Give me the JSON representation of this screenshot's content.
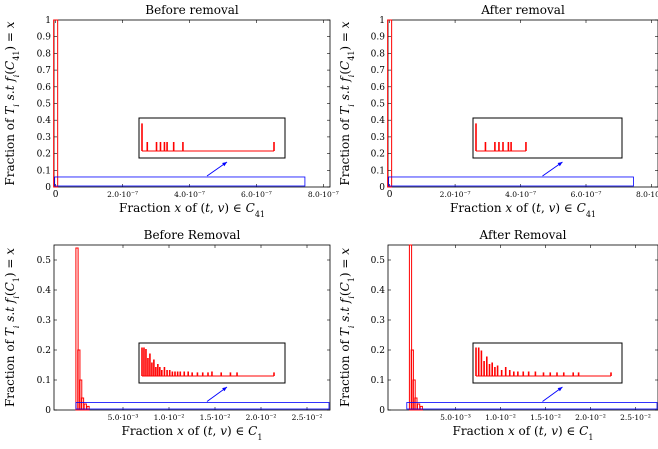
{
  "chart_data": [
    {
      "type": "bar",
      "title": "Before removal",
      "xlabel": "Fraction x of (t, v) ∈ C41",
      "ylabel": "Fraction of T_i s.t f_i(C41) = x",
      "xlim": [
        -5e-09,
        8.2e-07
      ],
      "ylim": [
        0,
        1
      ],
      "xticks": [
        {
          "v": 0,
          "label": "0"
        },
        {
          "v": 2e-07,
          "label": "2.0·10⁻⁷"
        },
        {
          "v": 4e-07,
          "label": "4.0·10⁻⁷"
        },
        {
          "v": 6e-07,
          "label": "6.0·10⁻⁷"
        },
        {
          "v": 8e-07,
          "label": "8.0·10⁻⁷"
        }
      ],
      "yticks": [
        "0",
        "0.1",
        "0.2",
        "0.3",
        "0.4",
        "0.5",
        "0.6",
        "0.7",
        "0.8",
        "0.9",
        "1"
      ],
      "bars": [
        {
          "x": 0,
          "y": 1.0
        }
      ],
      "zoom_region": {
        "x": [
          0,
          7.45e-07
        ],
        "y": [
          0,
          0.06
        ]
      },
      "inset_bars": [
        {
          "x": 0.0,
          "y": 0.92
        },
        {
          "x": 0.04,
          "y": 0.3
        },
        {
          "x": 0.11,
          "y": 0.3
        },
        {
          "x": 0.14,
          "y": 0.3
        },
        {
          "x": 0.17,
          "y": 0.3
        },
        {
          "x": 0.19,
          "y": 0.3
        },
        {
          "x": 0.24,
          "y": 0.3
        },
        {
          "x": 0.31,
          "y": 0.3
        },
        {
          "x": 1.0,
          "y": 0.3
        }
      ]
    },
    {
      "type": "bar",
      "title": "After removal",
      "xlabel": "Fraction x of (t, v) ∈ C41",
      "ylabel": "Fraction of T_i s.t f_i(C41) = x",
      "xlim": [
        -5e-09,
        8.2e-07
      ],
      "ylim": [
        0,
        1
      ],
      "xticks": [
        {
          "v": 0,
          "label": "0"
        },
        {
          "v": 2e-07,
          "label": "2.0·10⁻⁷"
        },
        {
          "v": 4e-07,
          "label": "4.0·10⁻⁷"
        },
        {
          "v": 6e-07,
          "label": "6.0·10⁻⁷"
        },
        {
          "v": 8e-07,
          "label": "8.0·10⁻⁷"
        }
      ],
      "yticks": [
        "0",
        "0.1",
        "0.2",
        "0.3",
        "0.4",
        "0.5",
        "0.6",
        "0.7",
        "0.8",
        "0.9",
        "1"
      ],
      "bars": [
        {
          "x": 0,
          "y": 1.0
        }
      ],
      "zoom_region": {
        "x": [
          0,
          7.45e-07
        ],
        "y": [
          0,
          0.06
        ]
      },
      "inset_bars": [
        {
          "x": 0.0,
          "y": 0.92
        },
        {
          "x": 0.07,
          "y": 0.3
        },
        {
          "x": 0.14,
          "y": 0.3
        },
        {
          "x": 0.17,
          "y": 0.3
        },
        {
          "x": 0.2,
          "y": 0.3
        },
        {
          "x": 0.24,
          "y": 0.3
        },
        {
          "x": 0.26,
          "y": 0.3
        },
        {
          "x": 0.37,
          "y": 0.3
        }
      ]
    },
    {
      "type": "bar",
      "title": "Before Removal",
      "xlabel": "Fraction x of (t, v) ∈ C1",
      "ylabel": "Fraction of T_i s.t f_i(C1) = x",
      "xlim": [
        -0.0025,
        0.0275
      ],
      "ylim": [
        0,
        0.55
      ],
      "xticks": [
        {
          "v": 0.005,
          "label": "5.0·10⁻³"
        },
        {
          "v": 0.01,
          "label": "1.0·10⁻²"
        },
        {
          "v": 0.015,
          "label": "1.5·10⁻²"
        },
        {
          "v": 0.02,
          "label": "2.0·10⁻²"
        },
        {
          "v": 0.025,
          "label": "2.5·10⁻²"
        }
      ],
      "yticks": [
        "0",
        "0.1",
        "0.2",
        "0.3",
        "0.4",
        "0.5"
      ],
      "bars": [
        {
          "x": 0.0,
          "y": 0.54
        },
        {
          "x": 0.0002,
          "y": 0.2
        },
        {
          "x": 0.0004,
          "y": 0.1
        },
        {
          "x": 0.0006,
          "y": 0.04
        },
        {
          "x": 0.0009,
          "y": 0.02
        },
        {
          "x": 0.0012,
          "y": 0.012
        }
      ],
      "zoom_region": {
        "x": [
          0,
          0.0275
        ],
        "y": [
          0,
          0.025
        ]
      },
      "inset_bars": [
        {
          "x": 0.0,
          "y": 0.95
        },
        {
          "x": 0.015,
          "y": 0.95
        },
        {
          "x": 0.03,
          "y": 0.9
        },
        {
          "x": 0.045,
          "y": 0.6
        },
        {
          "x": 0.06,
          "y": 0.75
        },
        {
          "x": 0.075,
          "y": 0.45
        },
        {
          "x": 0.09,
          "y": 0.55
        },
        {
          "x": 0.105,
          "y": 0.3
        },
        {
          "x": 0.12,
          "y": 0.4
        },
        {
          "x": 0.135,
          "y": 0.3
        },
        {
          "x": 0.15,
          "y": 0.2
        },
        {
          "x": 0.17,
          "y": 0.3
        },
        {
          "x": 0.19,
          "y": 0.2
        },
        {
          "x": 0.21,
          "y": 0.2
        },
        {
          "x": 0.23,
          "y": 0.15
        },
        {
          "x": 0.25,
          "y": 0.15
        },
        {
          "x": 0.27,
          "y": 0.15
        },
        {
          "x": 0.29,
          "y": 0.15
        },
        {
          "x": 0.32,
          "y": 0.15
        },
        {
          "x": 0.35,
          "y": 0.15
        },
        {
          "x": 0.38,
          "y": 0.12
        },
        {
          "x": 0.42,
          "y": 0.12
        },
        {
          "x": 0.46,
          "y": 0.12
        },
        {
          "x": 0.5,
          "y": 0.12
        },
        {
          "x": 0.53,
          "y": 0.15
        },
        {
          "x": 0.6,
          "y": 0.12
        },
        {
          "x": 0.67,
          "y": 0.12
        },
        {
          "x": 0.72,
          "y": 0.12
        },
        {
          "x": 1.0,
          "y": 0.12
        }
      ]
    },
    {
      "type": "bar",
      "title": "After Removal",
      "xlabel": "Fraction x of (t, v) ∈ C1",
      "ylabel": "Fraction of T_i s.t f_i(C1) = x",
      "xlim": [
        -0.0025,
        0.0275
      ],
      "ylim": [
        0,
        0.55
      ],
      "xticks": [
        {
          "v": 0.005,
          "label": "5.0·10⁻³"
        },
        {
          "v": 0.01,
          "label": "1.0·10⁻²"
        },
        {
          "v": 0.015,
          "label": "1.5·10⁻²"
        },
        {
          "v": 0.02,
          "label": "2.0·10⁻²"
        },
        {
          "v": 0.025,
          "label": "2.5·10⁻²"
        }
      ],
      "yticks": [
        "0",
        "0.1",
        "0.2",
        "0.3",
        "0.4",
        "0.5"
      ],
      "bars": [
        {
          "x": 0.0,
          "y": 0.55
        },
        {
          "x": 0.0002,
          "y": 0.2
        },
        {
          "x": 0.0004,
          "y": 0.1
        },
        {
          "x": 0.0006,
          "y": 0.04
        },
        {
          "x": 0.0009,
          "y": 0.02
        },
        {
          "x": 0.0012,
          "y": 0.012
        }
      ],
      "zoom_region": {
        "x": [
          -0.0003,
          0.0275
        ],
        "y": [
          0,
          0.025
        ]
      },
      "inset_bars": [
        {
          "x": 0.0,
          "y": 0.95
        },
        {
          "x": 0.02,
          "y": 0.95
        },
        {
          "x": 0.04,
          "y": 0.85
        },
        {
          "x": 0.06,
          "y": 0.5
        },
        {
          "x": 0.08,
          "y": 0.65
        },
        {
          "x": 0.1,
          "y": 0.4
        },
        {
          "x": 0.12,
          "y": 0.45
        },
        {
          "x": 0.14,
          "y": 0.3
        },
        {
          "x": 0.16,
          "y": 0.35
        },
        {
          "x": 0.19,
          "y": 0.2
        },
        {
          "x": 0.22,
          "y": 0.3
        },
        {
          "x": 0.25,
          "y": 0.2
        },
        {
          "x": 0.28,
          "y": 0.15
        },
        {
          "x": 0.31,
          "y": 0.15
        },
        {
          "x": 0.35,
          "y": 0.15
        },
        {
          "x": 0.39,
          "y": 0.15
        },
        {
          "x": 0.44,
          "y": 0.15
        },
        {
          "x": 0.5,
          "y": 0.12
        },
        {
          "x": 0.55,
          "y": 0.12
        },
        {
          "x": 0.6,
          "y": 0.12
        },
        {
          "x": 0.65,
          "y": 0.12
        },
        {
          "x": 0.72,
          "y": 0.12
        },
        {
          "x": 0.76,
          "y": 0.12
        },
        {
          "x": 1.0,
          "y": 0.12
        }
      ]
    }
  ],
  "colors": {
    "bars": "#ff0000",
    "zoom": "#0000ff",
    "axes": "#000000"
  }
}
